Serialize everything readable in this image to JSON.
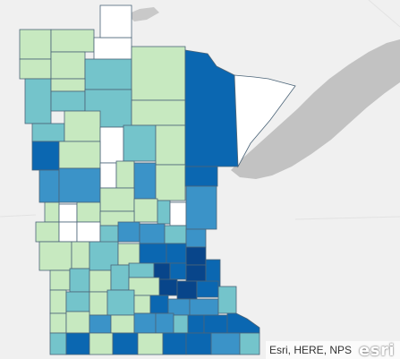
{
  "map": {
    "attribution": "Esri, HERE, NPS",
    "logo": "esri"
  },
  "colors": {
    "water": "#dcdcdc",
    "land": "#f0f0f0",
    "lake": "#c2c2c2",
    "road": "#ffffff",
    "county_border": "#4b6478",
    "class_none": "#ffffff",
    "class_1": "#c7e9c0",
    "class_2": "#74c4cb",
    "class_3": "#3b93c8",
    "class_4": "#0b67b1",
    "class_5": "#08458a"
  }
}
